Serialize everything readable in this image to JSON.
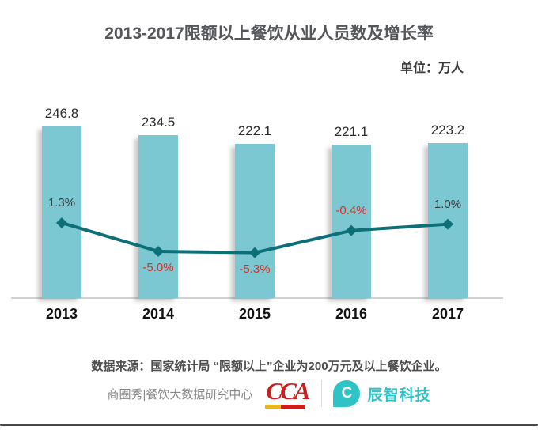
{
  "header": {
    "title": "2013-2017限额以上餐饮从业人员数及增长率",
    "unit_label": "单位：万人"
  },
  "chart_data": {
    "type": "combo-bar-line",
    "title": "2013-2017限额以上餐饮从业人员数及增长率",
    "unit": "万人",
    "categories": [
      "2013",
      "2014",
      "2015",
      "2016",
      "2017"
    ],
    "series": [
      {
        "name": "限额以上餐饮从业人员数",
        "type": "bar",
        "unit": "万人",
        "values": [
          246.8,
          234.5,
          222.1,
          221.1,
          223.2
        ],
        "labels": [
          "246.8",
          "234.5",
          "222.1",
          "221.1",
          "223.2"
        ],
        "color": "#7cc8d2"
      },
      {
        "name": "增长率",
        "type": "line",
        "unit": "%",
        "values": [
          1.3,
          -5.0,
          -5.3,
          -0.4,
          1.0
        ],
        "labels": [
          "1.3%",
          "-5.0%",
          "-5.3%",
          "-0.4%",
          "1.0%"
        ],
        "color": "#0d6f78",
        "marker": "diamond"
      }
    ],
    "ylim_bar": [
      0,
      280
    ],
    "grid": false,
    "legend_position": "none"
  },
  "footer": {
    "source_note": "数据来源：国家统计局 “限额以上”企业为200万元及以上餐饮企业。",
    "brand_center_text": "商圈秀|餐饮大数据研究中心",
    "cca_logo_text": "CCA",
    "chenzhi_logo_letter": "C",
    "chenzhi_name": "辰智科技"
  },
  "colors": {
    "bar": "#7cc8d2",
    "line": "#0d6f78",
    "negative_label": "#e02b20",
    "positive_label": "#333b40",
    "axis": "#d2d2d2",
    "title": "#56575a",
    "cca_red": "#c8201d",
    "cca_gold": "#e8b820",
    "chenzhi_teal": "#2fc3c5"
  }
}
